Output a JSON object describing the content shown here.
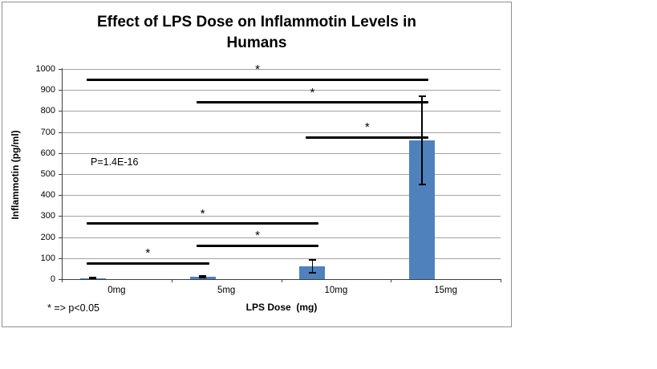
{
  "chart_data": {
    "type": "bar",
    "title": "Effect of LPS Dose on Inflammotin Levels in Humans",
    "title_lines": [
      "Effect of LPS Dose on Inflammotin Levels in",
      "Humans"
    ],
    "xlabel": "LPS Dose  (mg)",
    "ylabel": "Inflammotin (pg/ml)",
    "categories": [
      "0mg",
      "5mg",
      "10mg",
      "15mg"
    ],
    "values": [
      5,
      10,
      62,
      660
    ],
    "error_bars": [
      3,
      4,
      30,
      210
    ],
    "ylim": [
      0,
      1000
    ],
    "ytick_step": 100,
    "ytick_labels": [
      "0",
      "100",
      "200",
      "300",
      "400",
      "500",
      "600",
      "700",
      "800",
      "900",
      "1000"
    ],
    "grid": true,
    "legend": "none",
    "bar_color": "#4F81BD",
    "gridline_color": "#a3a3a3",
    "axis_color": "#3f3f3f",
    "significance_lines": [
      {
        "between": [
          "0mg",
          "15mg"
        ],
        "value": 950,
        "marker": "*"
      },
      {
        "between": [
          "5mg",
          "15mg"
        ],
        "value": 840,
        "marker": "*"
      },
      {
        "between": [
          "10mg",
          "15mg"
        ],
        "value": 675,
        "marker": "*"
      },
      {
        "between": [
          "0mg",
          "10mg"
        ],
        "value": 265,
        "marker": "*"
      },
      {
        "between": [
          "5mg",
          "10mg"
        ],
        "value": 160,
        "marker": "*"
      },
      {
        "between": [
          "0mg",
          "5mg"
        ],
        "value": 75,
        "marker": "*"
      }
    ],
    "annotations": {
      "p_value": "P=1.4E-16",
      "footnote": "* => p<0.05"
    }
  }
}
